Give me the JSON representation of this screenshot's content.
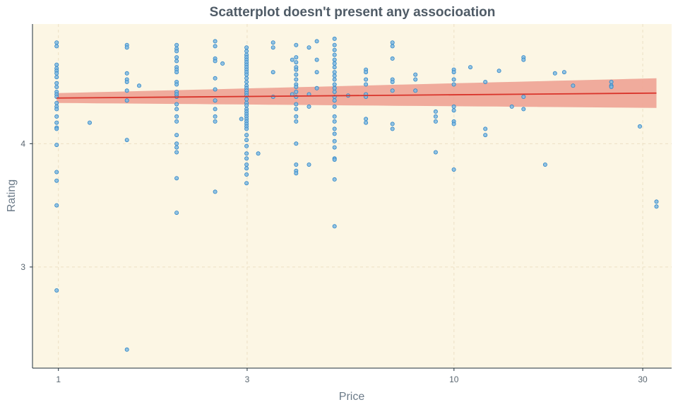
{
  "chart_data": {
    "type": "scatter",
    "title": "Scatterplot doesn't present any associoation",
    "xlabel": "Price",
    "ylabel": "Rating",
    "x_scale": "log10",
    "xlim": [
      0.86,
      35.5
    ],
    "ylim": [
      2.18,
      4.97
    ],
    "x_ticks": [
      1,
      3,
      10,
      30
    ],
    "y_ticks": [
      3,
      4
    ],
    "grid": true,
    "colors": {
      "panel_background": "#fcf6e4",
      "grid": "#ecdfc4",
      "point_fill": "#7fb8e0",
      "point_stroke": "#2e86c8",
      "trend_line": "#d9342b",
      "confidence_band": "#eea394",
      "axis_line": "#1f2f3a",
      "title": "#4f5b66"
    },
    "trend": {
      "method": "linear",
      "x": [
        0.99,
        32.5
      ],
      "y": [
        4.37,
        4.41
      ],
      "band_lower": [
        4.33,
        4.29
      ],
      "band_upper": [
        4.41,
        4.53
      ]
    },
    "points": [
      [
        0.99,
        4.82
      ],
      [
        0.99,
        4.79
      ],
      [
        0.99,
        4.64
      ],
      [
        0.99,
        4.61
      ],
      [
        0.99,
        4.59
      ],
      [
        0.99,
        4.57
      ],
      [
        0.99,
        4.54
      ],
      [
        0.99,
        4.49
      ],
      [
        0.99,
        4.46
      ],
      [
        0.99,
        4.42
      ],
      [
        0.99,
        4.4
      ],
      [
        0.99,
        4.38
      ],
      [
        0.99,
        4.33
      ],
      [
        0.99,
        4.3
      ],
      [
        0.99,
        4.28
      ],
      [
        0.99,
        4.22
      ],
      [
        0.99,
        4.17
      ],
      [
        0.99,
        4.13
      ],
      [
        0.99,
        4.12
      ],
      [
        0.99,
        3.99
      ],
      [
        0.99,
        3.77
      ],
      [
        0.99,
        3.7
      ],
      [
        0.99,
        3.5
      ],
      [
        0.99,
        2.81
      ],
      [
        1.2,
        4.17
      ],
      [
        1.49,
        4.8
      ],
      [
        1.49,
        4.78
      ],
      [
        1.49,
        4.57
      ],
      [
        1.49,
        4.52
      ],
      [
        1.49,
        4.5
      ],
      [
        1.49,
        4.43
      ],
      [
        1.49,
        4.35
      ],
      [
        1.49,
        4.03
      ],
      [
        1.49,
        2.33
      ],
      [
        1.6,
        4.47
      ],
      [
        1.99,
        4.8
      ],
      [
        1.99,
        4.77
      ],
      [
        1.99,
        4.75
      ],
      [
        1.99,
        4.7
      ],
      [
        1.99,
        4.67
      ],
      [
        1.99,
        4.62
      ],
      [
        1.99,
        4.6
      ],
      [
        1.99,
        4.58
      ],
      [
        1.99,
        4.5
      ],
      [
        1.99,
        4.48
      ],
      [
        1.99,
        4.42
      ],
      [
        1.99,
        4.4
      ],
      [
        1.99,
        4.38
      ],
      [
        1.99,
        4.32
      ],
      [
        1.99,
        4.28
      ],
      [
        1.99,
        4.22
      ],
      [
        1.99,
        4.18
      ],
      [
        1.99,
        4.07
      ],
      [
        1.99,
        4.0
      ],
      [
        1.99,
        3.97
      ],
      [
        1.99,
        3.93
      ],
      [
        1.99,
        3.72
      ],
      [
        1.99,
        3.44
      ],
      [
        2.49,
        4.83
      ],
      [
        2.49,
        4.79
      ],
      [
        2.49,
        4.69
      ],
      [
        2.49,
        4.67
      ],
      [
        2.49,
        4.53
      ],
      [
        2.49,
        4.44
      ],
      [
        2.49,
        4.35
      ],
      [
        2.49,
        4.28
      ],
      [
        2.49,
        4.22
      ],
      [
        2.49,
        4.18
      ],
      [
        2.49,
        3.61
      ],
      [
        2.6,
        4.65
      ],
      [
        2.99,
        4.78
      ],
      [
        2.99,
        4.75
      ],
      [
        2.99,
        4.72
      ],
      [
        2.99,
        4.7
      ],
      [
        2.99,
        4.68
      ],
      [
        2.99,
        4.66
      ],
      [
        2.99,
        4.64
      ],
      [
        2.99,
        4.62
      ],
      [
        2.99,
        4.6
      ],
      [
        2.99,
        4.58
      ],
      [
        2.99,
        4.56
      ],
      [
        2.99,
        4.53
      ],
      [
        2.99,
        4.5
      ],
      [
        2.99,
        4.47
      ],
      [
        2.99,
        4.45
      ],
      [
        2.99,
        4.43
      ],
      [
        2.99,
        4.41
      ],
      [
        2.99,
        4.39
      ],
      [
        2.99,
        4.36
      ],
      [
        2.99,
        4.33
      ],
      [
        2.99,
        4.31
      ],
      [
        2.99,
        4.28
      ],
      [
        2.99,
        4.26
      ],
      [
        2.99,
        4.24
      ],
      [
        2.99,
        4.22
      ],
      [
        2.99,
        4.2
      ],
      [
        2.99,
        4.18
      ],
      [
        2.99,
        4.16
      ],
      [
        2.99,
        4.14
      ],
      [
        2.99,
        4.12
      ],
      [
        2.99,
        4.07
      ],
      [
        2.99,
        4.03
      ],
      [
        2.99,
        3.98
      ],
      [
        2.99,
        3.92
      ],
      [
        2.99,
        3.88
      ],
      [
        2.99,
        3.83
      ],
      [
        2.99,
        3.8
      ],
      [
        2.99,
        3.75
      ],
      [
        2.99,
        3.68
      ],
      [
        2.9,
        4.2
      ],
      [
        3.2,
        3.92
      ],
      [
        3.49,
        4.82
      ],
      [
        3.49,
        4.78
      ],
      [
        3.49,
        4.58
      ],
      [
        3.49,
        4.38
      ],
      [
        3.99,
        4.8
      ],
      [
        3.99,
        4.7
      ],
      [
        3.99,
        4.66
      ],
      [
        3.99,
        4.62
      ],
      [
        3.99,
        4.6
      ],
      [
        3.99,
        4.56
      ],
      [
        3.99,
        4.52
      ],
      [
        3.99,
        4.48
      ],
      [
        3.99,
        4.46
      ],
      [
        3.99,
        4.42
      ],
      [
        3.99,
        4.38
      ],
      [
        3.99,
        4.32
      ],
      [
        3.99,
        4.28
      ],
      [
        3.99,
        4.22
      ],
      [
        3.99,
        4.18
      ],
      [
        3.99,
        4.0
      ],
      [
        3.99,
        3.83
      ],
      [
        3.99,
        3.78
      ],
      [
        3.99,
        3.76
      ],
      [
        3.9,
        4.68
      ],
      [
        3.9,
        4.4
      ],
      [
        4.3,
        4.78
      ],
      [
        4.3,
        4.4
      ],
      [
        4.3,
        4.3
      ],
      [
        4.3,
        3.83
      ],
      [
        4.5,
        4.83
      ],
      [
        4.5,
        4.68
      ],
      [
        4.5,
        4.58
      ],
      [
        4.5,
        4.45
      ],
      [
        4.99,
        4.85
      ],
      [
        4.99,
        4.8
      ],
      [
        4.99,
        4.76
      ],
      [
        4.99,
        4.72
      ],
      [
        4.99,
        4.68
      ],
      [
        4.99,
        4.65
      ],
      [
        4.99,
        4.62
      ],
      [
        4.99,
        4.58
      ],
      [
        4.99,
        4.55
      ],
      [
        4.99,
        4.52
      ],
      [
        4.99,
        4.48
      ],
      [
        4.99,
        4.45
      ],
      [
        4.99,
        4.42
      ],
      [
        4.99,
        4.38
      ],
      [
        4.99,
        4.35
      ],
      [
        4.99,
        4.3
      ],
      [
        4.99,
        4.22
      ],
      [
        4.99,
        4.18
      ],
      [
        4.99,
        4.12
      ],
      [
        4.99,
        4.08
      ],
      [
        4.99,
        4.02
      ],
      [
        4.99,
        3.97
      ],
      [
        4.99,
        3.88
      ],
      [
        4.99,
        3.87
      ],
      [
        4.99,
        3.71
      ],
      [
        4.99,
        3.33
      ],
      [
        5.4,
        4.39
      ],
      [
        5.99,
        4.6
      ],
      [
        5.99,
        4.58
      ],
      [
        5.99,
        4.52
      ],
      [
        5.99,
        4.48
      ],
      [
        5.99,
        4.4
      ],
      [
        5.99,
        4.38
      ],
      [
        5.99,
        4.2
      ],
      [
        5.99,
        4.17
      ],
      [
        6.99,
        4.82
      ],
      [
        6.99,
        4.79
      ],
      [
        6.99,
        4.69
      ],
      [
        6.99,
        4.52
      ],
      [
        6.99,
        4.5
      ],
      [
        6.99,
        4.43
      ],
      [
        6.99,
        4.16
      ],
      [
        6.99,
        4.12
      ],
      [
        7.99,
        4.56
      ],
      [
        7.99,
        4.52
      ],
      [
        7.99,
        4.43
      ],
      [
        8.99,
        4.26
      ],
      [
        8.99,
        4.22
      ],
      [
        8.99,
        4.18
      ],
      [
        8.99,
        3.93
      ],
      [
        9.99,
        4.6
      ],
      [
        9.99,
        4.58
      ],
      [
        9.99,
        4.52
      ],
      [
        9.99,
        4.48
      ],
      [
        9.99,
        4.3
      ],
      [
        9.99,
        4.27
      ],
      [
        9.99,
        4.18
      ],
      [
        9.99,
        4.16
      ],
      [
        9.99,
        3.79
      ],
      [
        11.0,
        4.62
      ],
      [
        12.0,
        4.5
      ],
      [
        12.0,
        4.12
      ],
      [
        12.0,
        4.07
      ],
      [
        13.0,
        4.59
      ],
      [
        14.0,
        4.3
      ],
      [
        14.99,
        4.7
      ],
      [
        14.99,
        4.68
      ],
      [
        14.99,
        4.38
      ],
      [
        14.99,
        4.28
      ],
      [
        17.0,
        3.83
      ],
      [
        18.0,
        4.57
      ],
      [
        19.0,
        4.58
      ],
      [
        20.0,
        4.47
      ],
      [
        24.99,
        4.5
      ],
      [
        24.99,
        4.47
      ],
      [
        24.99,
        4.46
      ],
      [
        29.5,
        4.14
      ],
      [
        32.5,
        3.53
      ],
      [
        32.5,
        3.49
      ]
    ]
  }
}
